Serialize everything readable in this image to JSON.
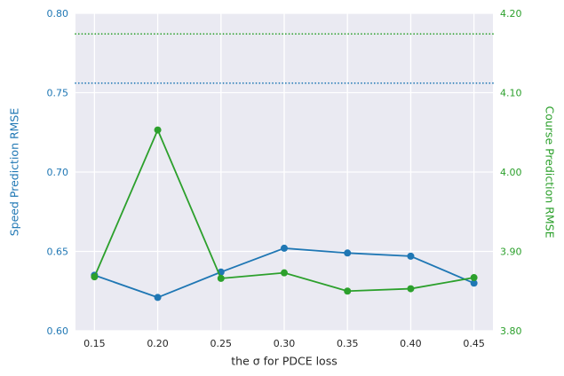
{
  "chart_data": {
    "type": "line",
    "title": "",
    "xlabel": "the σ for PDCE loss",
    "ylabel_left": "Speed Prediction RMSE",
    "ylabel_right": "Course Prediction RMSE",
    "x": [
      0.15,
      0.2,
      0.25,
      0.3,
      0.35,
      0.4,
      0.45
    ],
    "series": [
      {
        "name": "speed-rmse",
        "axis": "left",
        "color": "#1f77b4",
        "values": [
          0.635,
          0.621,
          0.637,
          0.652,
          0.649,
          0.647,
          0.63
        ]
      },
      {
        "name": "course-rmse",
        "axis": "right",
        "color": "#2ca02c",
        "values": [
          3.868,
          4.053,
          3.866,
          3.873,
          3.85,
          3.853,
          3.867
        ]
      }
    ],
    "baselines": [
      {
        "name": "speed-baseline",
        "axis": "left",
        "value": 0.756,
        "color": "#1f77b4",
        "style": "dotted"
      },
      {
        "name": "course-baseline",
        "axis": "right",
        "value": 4.174,
        "color": "#2ca02c",
        "style": "dotted"
      }
    ],
    "xlim": [
      0.135,
      0.465
    ],
    "ylim_left": [
      0.6,
      0.8
    ],
    "ylim_right": [
      3.8,
      4.2
    ],
    "xticks": [
      0.15,
      0.2,
      0.25,
      0.3,
      0.35,
      0.4,
      0.45
    ],
    "yticks_left": [
      0.6,
      0.65,
      0.7,
      0.75,
      0.8
    ],
    "yticks_right": [
      3.8,
      3.9,
      4.0,
      4.1,
      4.2
    ],
    "grid": true,
    "legend": "none",
    "plot_bg": "#eaeaf2",
    "grid_color": "#ffffff",
    "x_tick_color": "#262626"
  }
}
